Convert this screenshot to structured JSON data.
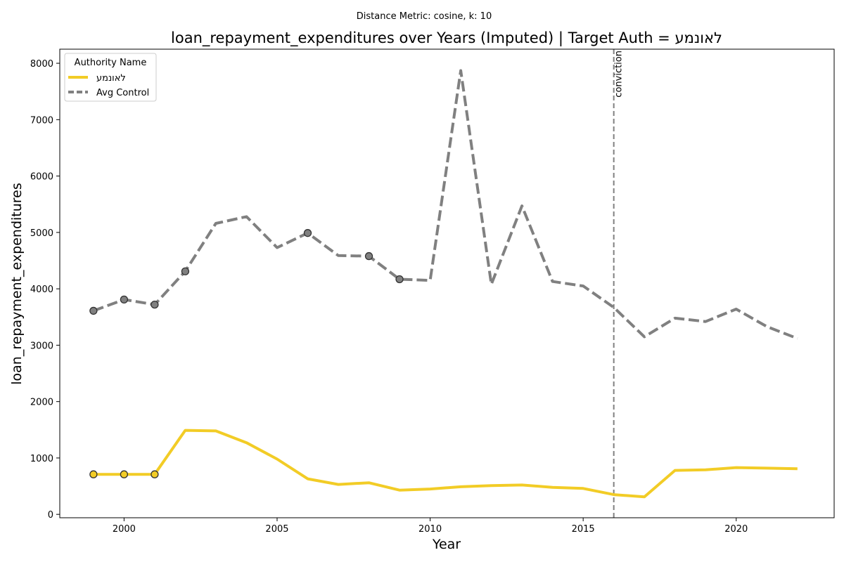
{
  "chart_data": {
    "type": "line",
    "suptitle": "Distance Metric: cosine, k: 10",
    "title": "loan_repayment_expenditures over Years (Imputed) | Target Auth = לאונמע",
    "xlabel": "Year",
    "ylabel": "loan_repayment_expenditures",
    "xlim": [
      1997.9,
      2023.2
    ],
    "ylim": [
      -60,
      8250
    ],
    "xticks": [
      2000,
      2005,
      2010,
      2015,
      2020
    ],
    "yticks": [
      0,
      1000,
      2000,
      3000,
      4000,
      5000,
      6000,
      7000,
      8000
    ],
    "grid": false,
    "legend": {
      "title": "Authority Name",
      "position": "top-left"
    },
    "x": [
      1999,
      2000,
      2001,
      2002,
      2003,
      2004,
      2005,
      2006,
      2007,
      2008,
      2009,
      2010,
      2011,
      2012,
      2013,
      2014,
      2015,
      2016,
      2017,
      2018,
      2019,
      2020,
      2021,
      2022
    ],
    "series": [
      {
        "name": "לאונמע",
        "color": "#f2cc26",
        "style": "solid",
        "values": [
          710,
          710,
          710,
          1490,
          1480,
          1270,
          980,
          630,
          530,
          560,
          430,
          450,
          490,
          510,
          520,
          480,
          460,
          350,
          310,
          780,
          790,
          830,
          820,
          810
        ],
        "markers": [
          1999,
          2000,
          2001
        ]
      },
      {
        "name": "Avg Control",
        "color": "#808080",
        "style": "dashed",
        "values": [
          3610,
          3810,
          3720,
          4310,
          5160,
          5280,
          4730,
          4990,
          4590,
          4580,
          4170,
          4150,
          7870,
          4080,
          5470,
          4130,
          4050,
          3670,
          3150,
          3480,
          3420,
          3640,
          3330,
          3120
        ],
        "markers": [
          1999,
          2000,
          2001,
          2002,
          2006,
          2008,
          2009
        ]
      }
    ],
    "annotations": [
      {
        "x": 2016,
        "label": "conviction",
        "style": "dashed",
        "color": "#808080"
      }
    ]
  }
}
